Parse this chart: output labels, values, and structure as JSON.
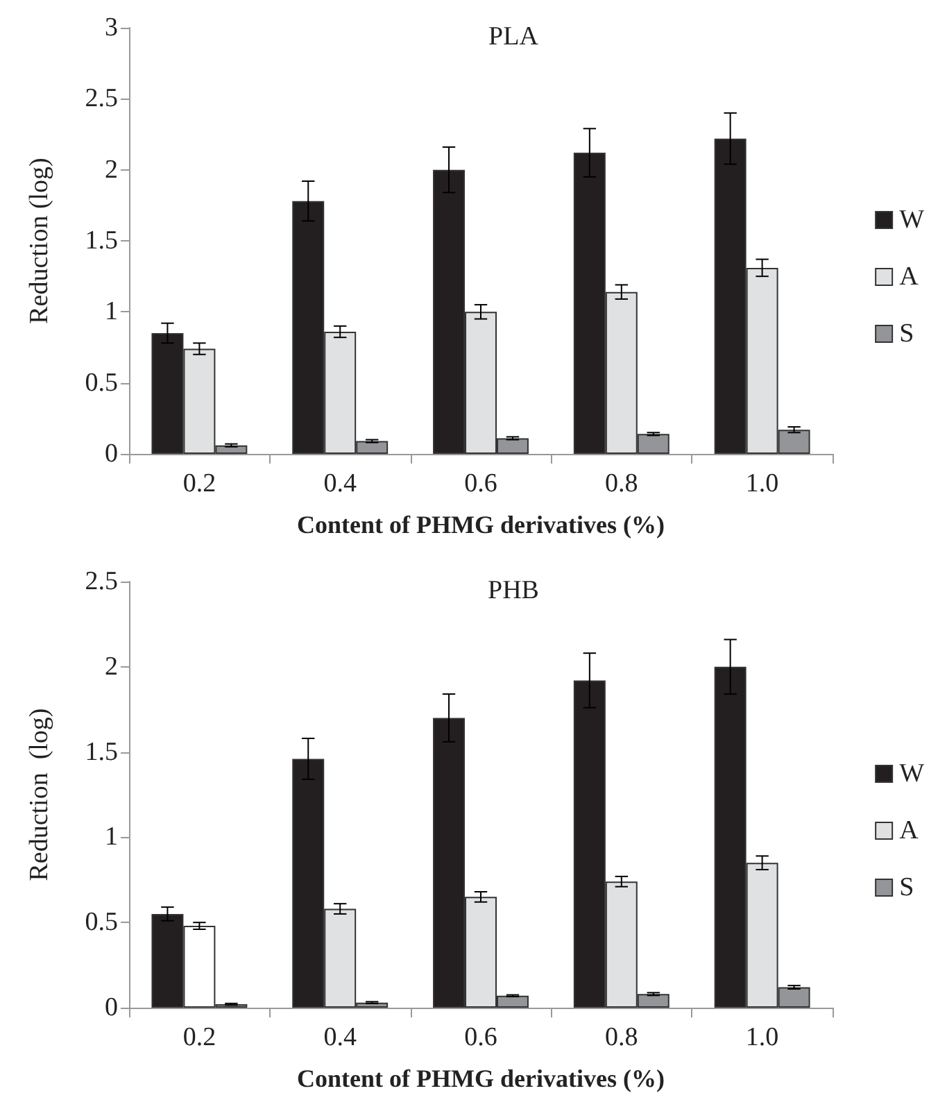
{
  "chart_data": [
    {
      "type": "bar",
      "title": "PLA",
      "xlabel": "Content of PHMG derivatives (%)",
      "ylabel": "Reduction (log)",
      "categories": [
        "0.2",
        "0.4",
        "0.6",
        "0.8",
        "1.0"
      ],
      "series": [
        {
          "name": "W",
          "color": "#231f20",
          "values": [
            0.85,
            1.78,
            2.0,
            2.12,
            2.22
          ],
          "errors": [
            0.07,
            0.14,
            0.16,
            0.17,
            0.18
          ]
        },
        {
          "name": "A",
          "color": "#e0e1e2",
          "values": [
            0.74,
            0.86,
            1.0,
            1.14,
            1.31
          ],
          "errors": [
            0.04,
            0.04,
            0.05,
            0.05,
            0.06
          ]
        },
        {
          "name": "S",
          "color": "#939598",
          "values": [
            0.06,
            0.09,
            0.11,
            0.14,
            0.17
          ],
          "errors": [
            0.01,
            0.01,
            0.01,
            0.01,
            0.02
          ]
        }
      ],
      "ylim": [
        0,
        3
      ],
      "yticks": [
        0,
        {
          "value": 0.5,
          "label": "0.5"
        },
        1,
        {
          "value": 1.5,
          "label": "1.5"
        },
        2,
        {
          "value": 2.5,
          "label": "2.5"
        },
        3
      ],
      "grid": false,
      "legend": "right"
    },
    {
      "type": "bar",
      "title": "PHB",
      "xlabel": "Content of PHMG derivatives (%)",
      "ylabel": "Reduction  (log)",
      "categories": [
        "0.2",
        "0.4",
        "0.6",
        "0.8",
        "1.0"
      ],
      "series": [
        {
          "name": "W",
          "color": "#231f20",
          "values": [
            0.55,
            1.46,
            1.7,
            1.92,
            2.0
          ],
          "errors": [
            0.04,
            0.12,
            0.14,
            0.16,
            0.16
          ]
        },
        {
          "name": "A",
          "color": "#e0e1e2",
          "colors": [
            "#ffffff",
            "#e0e1e2",
            "#e0e1e2",
            "#e0e1e2",
            "#e0e1e2"
          ],
          "values": [
            0.48,
            0.58,
            0.65,
            0.74,
            0.85
          ],
          "errors": [
            0.02,
            0.03,
            0.03,
            0.03,
            0.04
          ]
        },
        {
          "name": "S",
          "color": "#939598",
          "values": [
            0.02,
            0.03,
            0.07,
            0.08,
            0.12
          ],
          "errors": [
            0.005,
            0.005,
            0.005,
            0.008,
            0.01
          ]
        }
      ],
      "ylim": [
        0,
        2.5
      ],
      "yticks": [
        0,
        {
          "value": 0.5,
          "label": "0.5"
        },
        1,
        {
          "value": 1.5,
          "label": "1.5"
        },
        2,
        {
          "value": 2.5,
          "label": "2.5"
        }
      ],
      "grid": false,
      "legend": "right"
    }
  ]
}
